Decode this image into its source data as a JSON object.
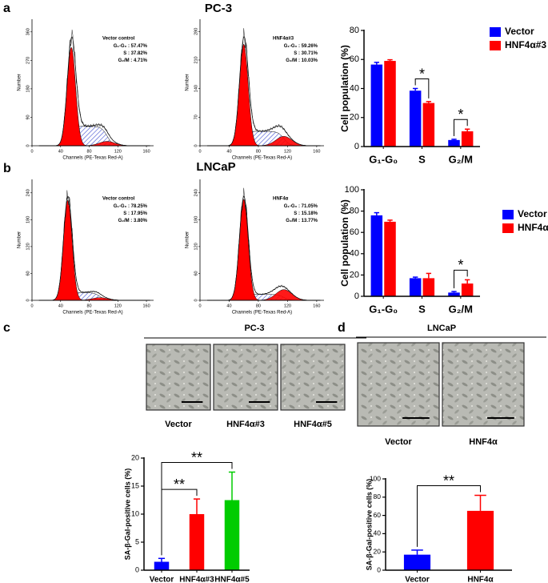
{
  "rows": [
    {
      "label": "a",
      "title": "PC-3"
    },
    {
      "label": "b",
      "title": "LNCaP"
    },
    {
      "label": "c",
      "title": "PC-3",
      "images": [
        "Vector",
        "HNF4α#3",
        "HNF4α#5"
      ]
    },
    {
      "label": "d",
      "title": "LNCaP",
      "images": [
        "Vector",
        "HNF4α"
      ]
    }
  ],
  "chart_data": [
    {
      "type": "flow",
      "sample": "Vector control",
      "phases": [
        "G₁-G₀",
        "S",
        "G₂/M"
      ],
      "separator": " : ",
      "values": [
        57.47,
        37.82,
        4.71
      ],
      "value_labels": [
        "57.47%",
        "37.82%",
        "4.71%"
      ],
      "xlabel": "Channels (PE-Texas Red-A)",
      "ylabel": "Number",
      "xlim": [
        0,
        170
      ],
      "xticks": [
        0,
        40,
        80,
        120,
        160
      ],
      "ylim": [
        0,
        400
      ],
      "yticks": [
        0,
        90,
        180,
        270,
        360
      ],
      "color": "#ff0000",
      "hatch_color": "#3f4fd0"
    },
    {
      "type": "flow",
      "sample": "HNF4α#3",
      "phases": [
        "G₁-G₀",
        "S",
        "G₂/M"
      ],
      "separator": " : ",
      "values": [
        59.26,
        30.71,
        10.03
      ],
      "value_labels": [
        "59.26%",
        "30.71%",
        "10.03%"
      ],
      "xlabel": "Channels (PE-Texas Red-A)",
      "ylabel": "Number",
      "xlim": [
        0,
        170
      ],
      "xticks": [
        0,
        40,
        80,
        120,
        160
      ],
      "ylim": [
        0,
        310
      ],
      "yticks": [
        0,
        70,
        140,
        210,
        280
      ],
      "color": "#ff0000",
      "hatch_color": "#3f4fd0"
    },
    {
      "type": "bar",
      "categories": [
        "G₁-G₀",
        "S",
        "G₂/M"
      ],
      "ylabel": "Cell population (%)",
      "ylim": [
        0,
        80
      ],
      "yticks": [
        0,
        20,
        40,
        60,
        80
      ],
      "series": [
        {
          "name": "Vector",
          "color": "#0000ff",
          "values": [
            56.5,
            38.5,
            4.5
          ],
          "errors": [
            1.5,
            1.5,
            0.5
          ]
        },
        {
          "name": "HNF4α#3",
          "color": "#ff0000",
          "values": [
            59,
            30,
            10.5
          ],
          "errors": [
            0.8,
            1,
            1.5
          ]
        }
      ],
      "annotations": [
        "*",
        "*"
      ],
      "legend": "upper right"
    },
    {
      "type": "flow",
      "sample": "Vector control",
      "phases": [
        "G₁-G₀",
        "S",
        "G₂/M"
      ],
      "separator": " : ",
      "values": [
        78.25,
        17.95,
        3.8
      ],
      "value_labels": [
        "78.25%",
        "17.95%",
        "3.80%"
      ],
      "xlabel": "Channels (PE-Texas Red-A)",
      "ylabel": "Number",
      "xlim": [
        0,
        170
      ],
      "xticks": [
        0,
        40,
        80,
        120,
        160
      ],
      "ylim": [
        0,
        270
      ],
      "yticks": [
        0,
        60,
        120,
        180,
        240
      ],
      "color": "#ff0000",
      "hatch_color": "#3f4fd0"
    },
    {
      "type": "flow",
      "sample": "HNF4α",
      "phases": [
        "G₁-G₀",
        "S",
        "G₂/M"
      ],
      "separator": " : ",
      "values": [
        71.05,
        15.18,
        13.77
      ],
      "value_labels": [
        "71.05%",
        "15.18%",
        "13.77%"
      ],
      "xlabel": "Channels (PE-Texas Red-A)",
      "ylabel": "Number",
      "xlim": [
        0,
        170
      ],
      "xticks": [
        0,
        40,
        80,
        120,
        160
      ],
      "ylim": [
        0,
        270
      ],
      "yticks": [
        0,
        60,
        120,
        180,
        240
      ],
      "color": "#ff0000",
      "hatch_color": "#3f4fd0"
    },
    {
      "type": "bar",
      "categories": [
        "G₁-G₀",
        "S",
        "G₂/M"
      ],
      "ylabel": "Cell population (%)",
      "ylim": [
        0,
        100
      ],
      "yticks": [
        0,
        20,
        40,
        60,
        80,
        100
      ],
      "series": [
        {
          "name": "Vector",
          "color": "#0000ff",
          "values": [
            76,
            17,
            3.5
          ],
          "errors": [
            2.5,
            1,
            1
          ]
        },
        {
          "name": "HNF4α",
          "color": "#ff0000",
          "values": [
            70,
            17,
            12
          ],
          "errors": [
            1.5,
            4.5,
            3.5
          ]
        }
      ],
      "annotations": [
        "*"
      ],
      "legend": "upper right"
    },
    {
      "type": "bar",
      "categories": [
        "Vector",
        "HNF4α#3",
        "HNF4α#5"
      ],
      "ylabel": "SA-β-Gal-positive cells (%)",
      "ylim": [
        0,
        20
      ],
      "yticks": [
        0,
        5,
        10,
        15,
        20
      ],
      "values": [
        1.5,
        10,
        12.5
      ],
      "errors": [
        0.6,
        2.7,
        5
      ],
      "colors": [
        "#0000ff",
        "#ff0000",
        "#00cc00"
      ],
      "annotations": [
        "**",
        "**"
      ]
    },
    {
      "type": "bar",
      "categories": [
        "Vector",
        "HNF4α"
      ],
      "ylabel": "SA-β-Gal-positive cells (%)",
      "ylim": [
        0,
        100
      ],
      "yticks": [
        0,
        20,
        40,
        60,
        80,
        100
      ],
      "values": [
        17,
        65
      ],
      "errors": [
        5,
        17
      ],
      "colors": [
        "#0000ff",
        "#ff0000"
      ],
      "annotations": [
        "**"
      ]
    }
  ]
}
